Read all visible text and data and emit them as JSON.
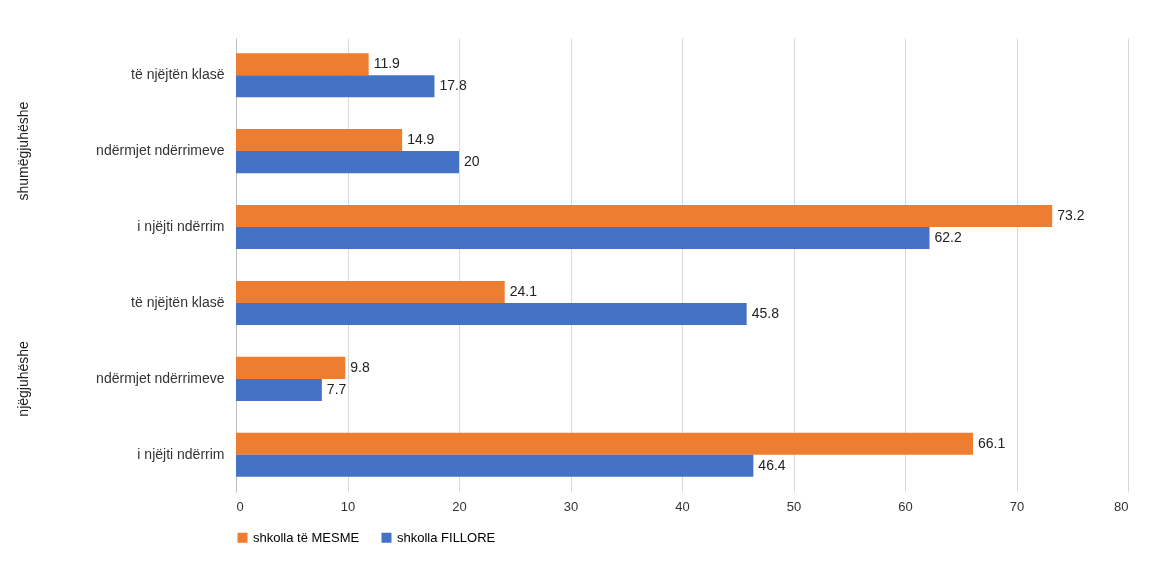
{
  "chart_data": {
    "type": "bar",
    "orientation": "horizontal",
    "categories": [
      "të njëjtën klasë",
      "ndërmjet ndërrimeve",
      "i njëjti ndërrim",
      "të njëjtën klasë",
      "ndërmjet ndërrimeve",
      "i njëjti ndërrim"
    ],
    "series": [
      {
        "name": "shkolla të MESME",
        "color": "#ed7d31",
        "values": [
          11.9,
          14.9,
          73.2,
          24.1,
          9.8,
          66.1
        ]
      },
      {
        "name": "shkolla FILLORE",
        "color": "#4472c4",
        "values": [
          17.8,
          20,
          62.2,
          45.8,
          7.7,
          46.4
        ]
      }
    ],
    "xlim": [
      0,
      80
    ],
    "xticks": [
      0,
      10,
      20,
      30,
      40,
      50,
      60,
      70,
      80
    ],
    "grid": "x",
    "legend": "bottom",
    "data_labels": true,
    "annotations": [
      "shumëgjuhëshe",
      "njëgjuhëshe"
    ]
  }
}
